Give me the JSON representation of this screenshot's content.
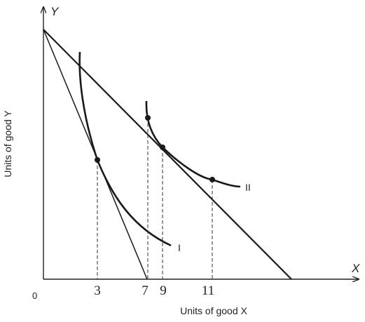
{
  "axes": {
    "y_letter": "Y",
    "x_letter": "X",
    "y_title": "Units of good Y",
    "x_title": "Units of good X",
    "origin": "0"
  },
  "ticks": [
    "3",
    "7",
    "9",
    "11"
  ],
  "curves": {
    "indifference_low": "I",
    "indifference_high": "II"
  },
  "colors": {
    "ink": "#222222",
    "background": "#ffffff"
  }
}
